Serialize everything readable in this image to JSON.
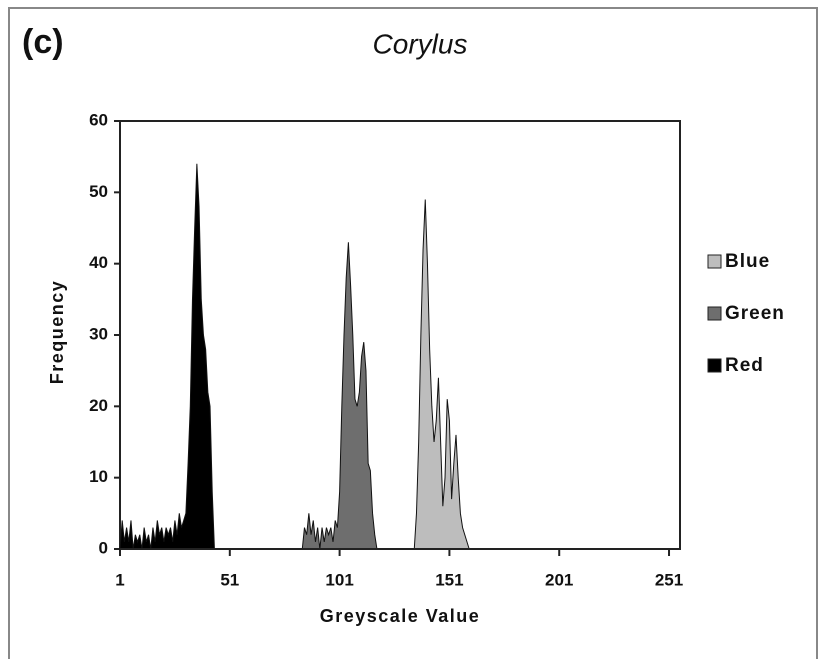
{
  "chart_data": {
    "type": "area",
    "panel_label": "(c)",
    "title": "Corylus",
    "x_label": "Greyscale Value",
    "y_label": "Frequency",
    "xlim": [
      1,
      256
    ],
    "ylim": [
      0,
      60
    ],
    "xticks": [
      1,
      51,
      101,
      151,
      201,
      251
    ],
    "yticks": [
      0,
      10,
      20,
      30,
      40,
      50,
      60
    ],
    "legend": "right",
    "series": [
      {
        "name": "Blue",
        "color": "#bdbdbd",
        "x": [
          135,
          136,
          137,
          138,
          139,
          140,
          141,
          142,
          143,
          144,
          145,
          146,
          147,
          148,
          149,
          150,
          151,
          152,
          153,
          154,
          155,
          156,
          157,
          158,
          159,
          160
        ],
        "values": [
          0,
          5,
          15,
          30,
          42,
          49,
          40,
          28,
          20,
          15,
          18,
          24,
          15,
          6,
          10,
          21,
          18,
          7,
          12,
          16,
          10,
          5,
          3,
          2,
          1,
          0
        ]
      },
      {
        "name": "Green",
        "color": "#6e6e6e",
        "x": [
          84,
          85,
          86,
          87,
          88,
          89,
          90,
          91,
          92,
          93,
          94,
          95,
          96,
          97,
          98,
          99,
          100,
          101,
          102,
          103,
          104,
          105,
          106,
          107,
          108,
          109,
          110,
          111,
          112,
          113,
          114,
          115,
          116,
          117,
          118
        ],
        "values": [
          0,
          3,
          2,
          5,
          2,
          4,
          1,
          3,
          0,
          3,
          1,
          3,
          2,
          3,
          1,
          4,
          3,
          8,
          20,
          30,
          38,
          43,
          37,
          30,
          21,
          20,
          22,
          27,
          29,
          25,
          12,
          11,
          5,
          2,
          0
        ]
      },
      {
        "name": "Red",
        "color": "#000000",
        "x": [
          1,
          2,
          3,
          4,
          5,
          6,
          7,
          8,
          9,
          10,
          11,
          12,
          13,
          14,
          15,
          16,
          17,
          18,
          19,
          20,
          21,
          22,
          23,
          24,
          25,
          26,
          27,
          28,
          29,
          30,
          31,
          32,
          33,
          34,
          35,
          36,
          37,
          38,
          39,
          40,
          41,
          42,
          43,
          44
        ],
        "values": [
          0,
          4,
          1,
          3,
          1,
          4,
          0,
          2,
          1,
          2,
          0,
          3,
          1,
          2,
          0,
          3,
          1,
          4,
          2,
          3,
          1,
          3,
          2,
          3,
          1,
          4,
          2,
          5,
          3,
          4,
          5,
          12,
          20,
          35,
          45,
          54,
          48,
          35,
          30,
          28,
          22,
          20,
          8,
          0
        ]
      }
    ]
  }
}
